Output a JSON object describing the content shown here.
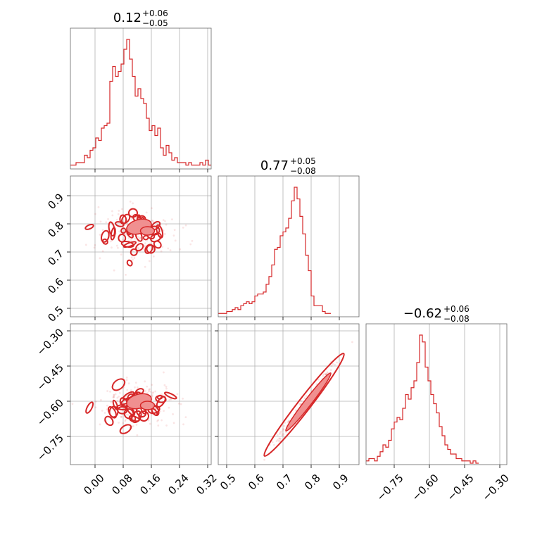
{
  "colors": {
    "line": "#d62728",
    "fill": "#f09090",
    "grid": "#b0b0b0"
  },
  "chart_data": {
    "type": "corner",
    "grid": true,
    "titles": [
      {
        "value": "0.12",
        "plus": "+0.06",
        "minus": "−0.05"
      },
      {
        "value": "0.77",
        "plus": "+0.05",
        "minus": "−0.08"
      },
      {
        "value": "−0.62",
        "plus": "+0.06",
        "minus": "−0.08"
      }
    ],
    "params": [
      {
        "range": [
          -0.07,
          0.33
        ],
        "ticks": [
          0.0,
          0.08,
          0.16,
          0.24,
          0.32
        ],
        "tick_labels": [
          "0.00",
          "0.08",
          "0.16",
          "0.24",
          "0.32"
        ]
      },
      {
        "range": [
          0.47,
          0.97
        ],
        "ticks": [
          0.5,
          0.6,
          0.7,
          0.8,
          0.9
        ],
        "tick_labels": [
          "0.5",
          "0.6",
          "0.7",
          "0.8",
          "0.9"
        ]
      },
      {
        "range": [
          -0.87,
          -0.27
        ],
        "ticks": [
          -0.75,
          -0.6,
          -0.45,
          -0.3
        ],
        "tick_labels": [
          "−0.75",
          "−0.60",
          "−0.45",
          "−0.30"
        ]
      }
    ],
    "histograms": [
      {
        "bin_start": -0.07,
        "bin_width": 0.008,
        "counts": [
          1,
          1,
          2,
          2,
          2,
          5,
          4,
          7,
          8,
          12,
          11,
          16,
          17,
          18,
          35,
          41,
          37,
          39,
          42,
          48,
          52,
          44,
          37,
          29,
          32,
          28,
          26,
          20,
          15,
          17,
          13,
          16,
          8,
          5,
          9,
          6,
          3,
          4,
          2,
          2,
          2,
          1,
          2,
          1,
          1,
          1,
          2,
          1,
          3,
          1
        ]
      },
      {
        "bin_start": 0.47,
        "bin_width": 0.01,
        "counts": [
          1,
          1,
          1,
          2,
          2,
          3,
          4,
          3,
          5,
          6,
          7,
          6,
          7,
          10,
          11,
          11,
          12,
          16,
          20,
          26,
          34,
          35,
          41,
          43,
          45,
          50,
          59,
          66,
          60,
          51,
          42,
          31,
          23,
          10,
          5,
          5,
          5,
          2,
          1,
          1
        ]
      },
      {
        "bin_start": -0.87,
        "bin_width": 0.012,
        "counts": [
          1,
          2,
          2,
          1,
          3,
          5,
          8,
          7,
          10,
          15,
          18,
          20,
          19,
          24,
          30,
          28,
          33,
          36,
          44,
          56,
          53,
          42,
          36,
          30,
          26,
          22,
          16,
          12,
          8,
          6,
          4,
          4,
          2,
          2,
          1,
          1,
          1,
          0,
          1,
          0
        ]
      }
    ]
  }
}
